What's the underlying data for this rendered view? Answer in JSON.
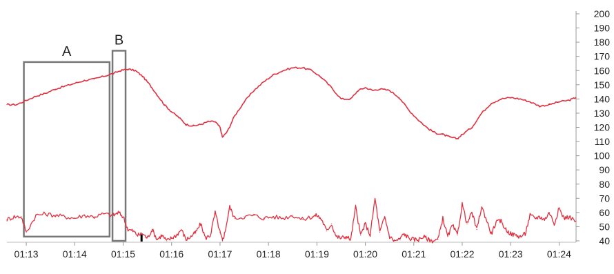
{
  "chart_data": {
    "type": "line",
    "title": "",
    "xlabel": "",
    "ylabel": "",
    "x_ticks": [
      "01:13",
      "01:14",
      "01:15",
      "01:16",
      "01:17",
      "01:18",
      "01:19",
      "01:20",
      "01:21",
      "01:22",
      "01:23",
      "01:24"
    ],
    "x_range_minutes": [
      72.6,
      84.35
    ],
    "y_ticks": [
      40,
      50,
      60,
      70,
      80,
      90,
      100,
      110,
      120,
      130,
      140,
      150,
      160,
      170,
      180,
      190,
      200
    ],
    "ylim": [
      40,
      200
    ],
    "y_axis_side": "right",
    "grid": false,
    "line_color": "#e03040",
    "annotation_color": "#777777",
    "series": [
      {
        "x": [
          72.6,
          72.8,
          73.0,
          73.2,
          73.4,
          73.6,
          73.8,
          74.0,
          74.2,
          74.4,
          74.6,
          74.8,
          74.95,
          75.1,
          75.25,
          75.4,
          75.55,
          75.7,
          75.85,
          76.0,
          76.15,
          76.3,
          76.45,
          76.6,
          76.75,
          76.9,
          77.0,
          77.05,
          77.15,
          77.3,
          77.5,
          77.7,
          77.9,
          78.1,
          78.3,
          78.5,
          78.7,
          78.9,
          79.1,
          79.3,
          79.5,
          79.7,
          79.85,
          80.0,
          80.15,
          80.3,
          80.5,
          80.7,
          80.9,
          81.1,
          81.3,
          81.45,
          81.6,
          81.75,
          81.9,
          82.0,
          82.2,
          82.4,
          82.6,
          82.8,
          83.0,
          83.2,
          83.4,
          83.6,
          83.8,
          84.0,
          84.2,
          84.35
        ],
        "values": [
          136,
          136,
          139,
          142,
          144,
          147,
          149,
          151,
          153,
          154,
          156,
          158,
          160,
          161,
          160,
          156,
          150,
          143,
          136,
          131,
          127,
          122,
          121,
          122,
          124,
          124,
          120,
          113,
          117,
          128,
          138,
          146,
          152,
          157,
          160,
          162,
          162,
          160,
          155,
          148,
          140,
          140,
          146,
          148,
          146,
          147,
          146,
          141,
          132,
          125,
          119,
          116,
          115,
          113,
          112,
          115,
          120,
          130,
          137,
          140,
          141,
          140,
          138,
          135,
          136,
          138,
          139,
          141
        ]
      },
      {
        "x": [
          72.6,
          72.75,
          72.9,
          73.0,
          73.2,
          73.4,
          73.6,
          73.8,
          74.0,
          74.2,
          74.4,
          74.6,
          74.8,
          74.9,
          75.0,
          75.1,
          75.2,
          75.3,
          75.4,
          75.5,
          75.6,
          75.7,
          75.8,
          75.9,
          76.0,
          76.1,
          76.2,
          76.3,
          76.4,
          76.5,
          76.6,
          76.7,
          76.8,
          76.9,
          77.0,
          77.05,
          77.1,
          77.2,
          77.3,
          77.5,
          77.7,
          77.9,
          78.1,
          78.3,
          78.5,
          78.7,
          78.9,
          79.0,
          79.1,
          79.2,
          79.3,
          79.4,
          79.5,
          79.6,
          79.7,
          79.8,
          79.9,
          80.0,
          80.1,
          80.2,
          80.3,
          80.4,
          80.5,
          80.6,
          80.7,
          80.8,
          80.9,
          81.0,
          81.1,
          81.2,
          81.3,
          81.4,
          81.5,
          81.6,
          81.7,
          81.8,
          81.9,
          82.0,
          82.1,
          82.2,
          82.3,
          82.4,
          82.5,
          82.6,
          82.7,
          82.8,
          82.9,
          83.0,
          83.1,
          83.2,
          83.3,
          83.4,
          83.5,
          83.6,
          83.7,
          83.8,
          83.9,
          84.0,
          84.1,
          84.2,
          84.35
        ],
        "values": [
          55,
          57,
          57,
          46,
          58,
          59,
          58,
          57,
          56,
          58,
          57,
          59,
          58,
          60,
          57,
          48,
          47,
          44,
          45,
          42,
          48,
          41,
          44,
          40,
          42,
          44,
          48,
          41,
          43,
          46,
          52,
          42,
          44,
          60,
          46,
          40,
          46,
          64,
          56,
          57,
          58,
          56,
          57,
          56,
          58,
          55,
          57,
          58,
          55,
          47,
          52,
          43,
          42,
          43,
          41,
          64,
          44,
          52,
          44,
          70,
          46,
          57,
          43,
          40,
          41,
          45,
          42,
          41,
          41,
          43,
          41,
          40,
          41,
          56,
          43,
          51,
          44,
          66,
          52,
          60,
          48,
          64,
          55,
          45,
          53,
          54,
          48,
          45,
          44,
          43,
          45,
          58,
          56,
          57,
          55,
          60,
          52,
          63,
          56,
          57,
          54
        ]
      }
    ],
    "annotations": [
      {
        "label": "A",
        "x_start": 72.95,
        "x_end": 74.72,
        "y_bottom": 43,
        "y_top": 166
      },
      {
        "label": "B",
        "x_start": 74.78,
        "x_end": 75.05,
        "y_bottom": 40,
        "y_top": 174
      }
    ],
    "tick_mark": {
      "x": 75.38,
      "y_bottom": 40,
      "y_top": 45
    }
  }
}
